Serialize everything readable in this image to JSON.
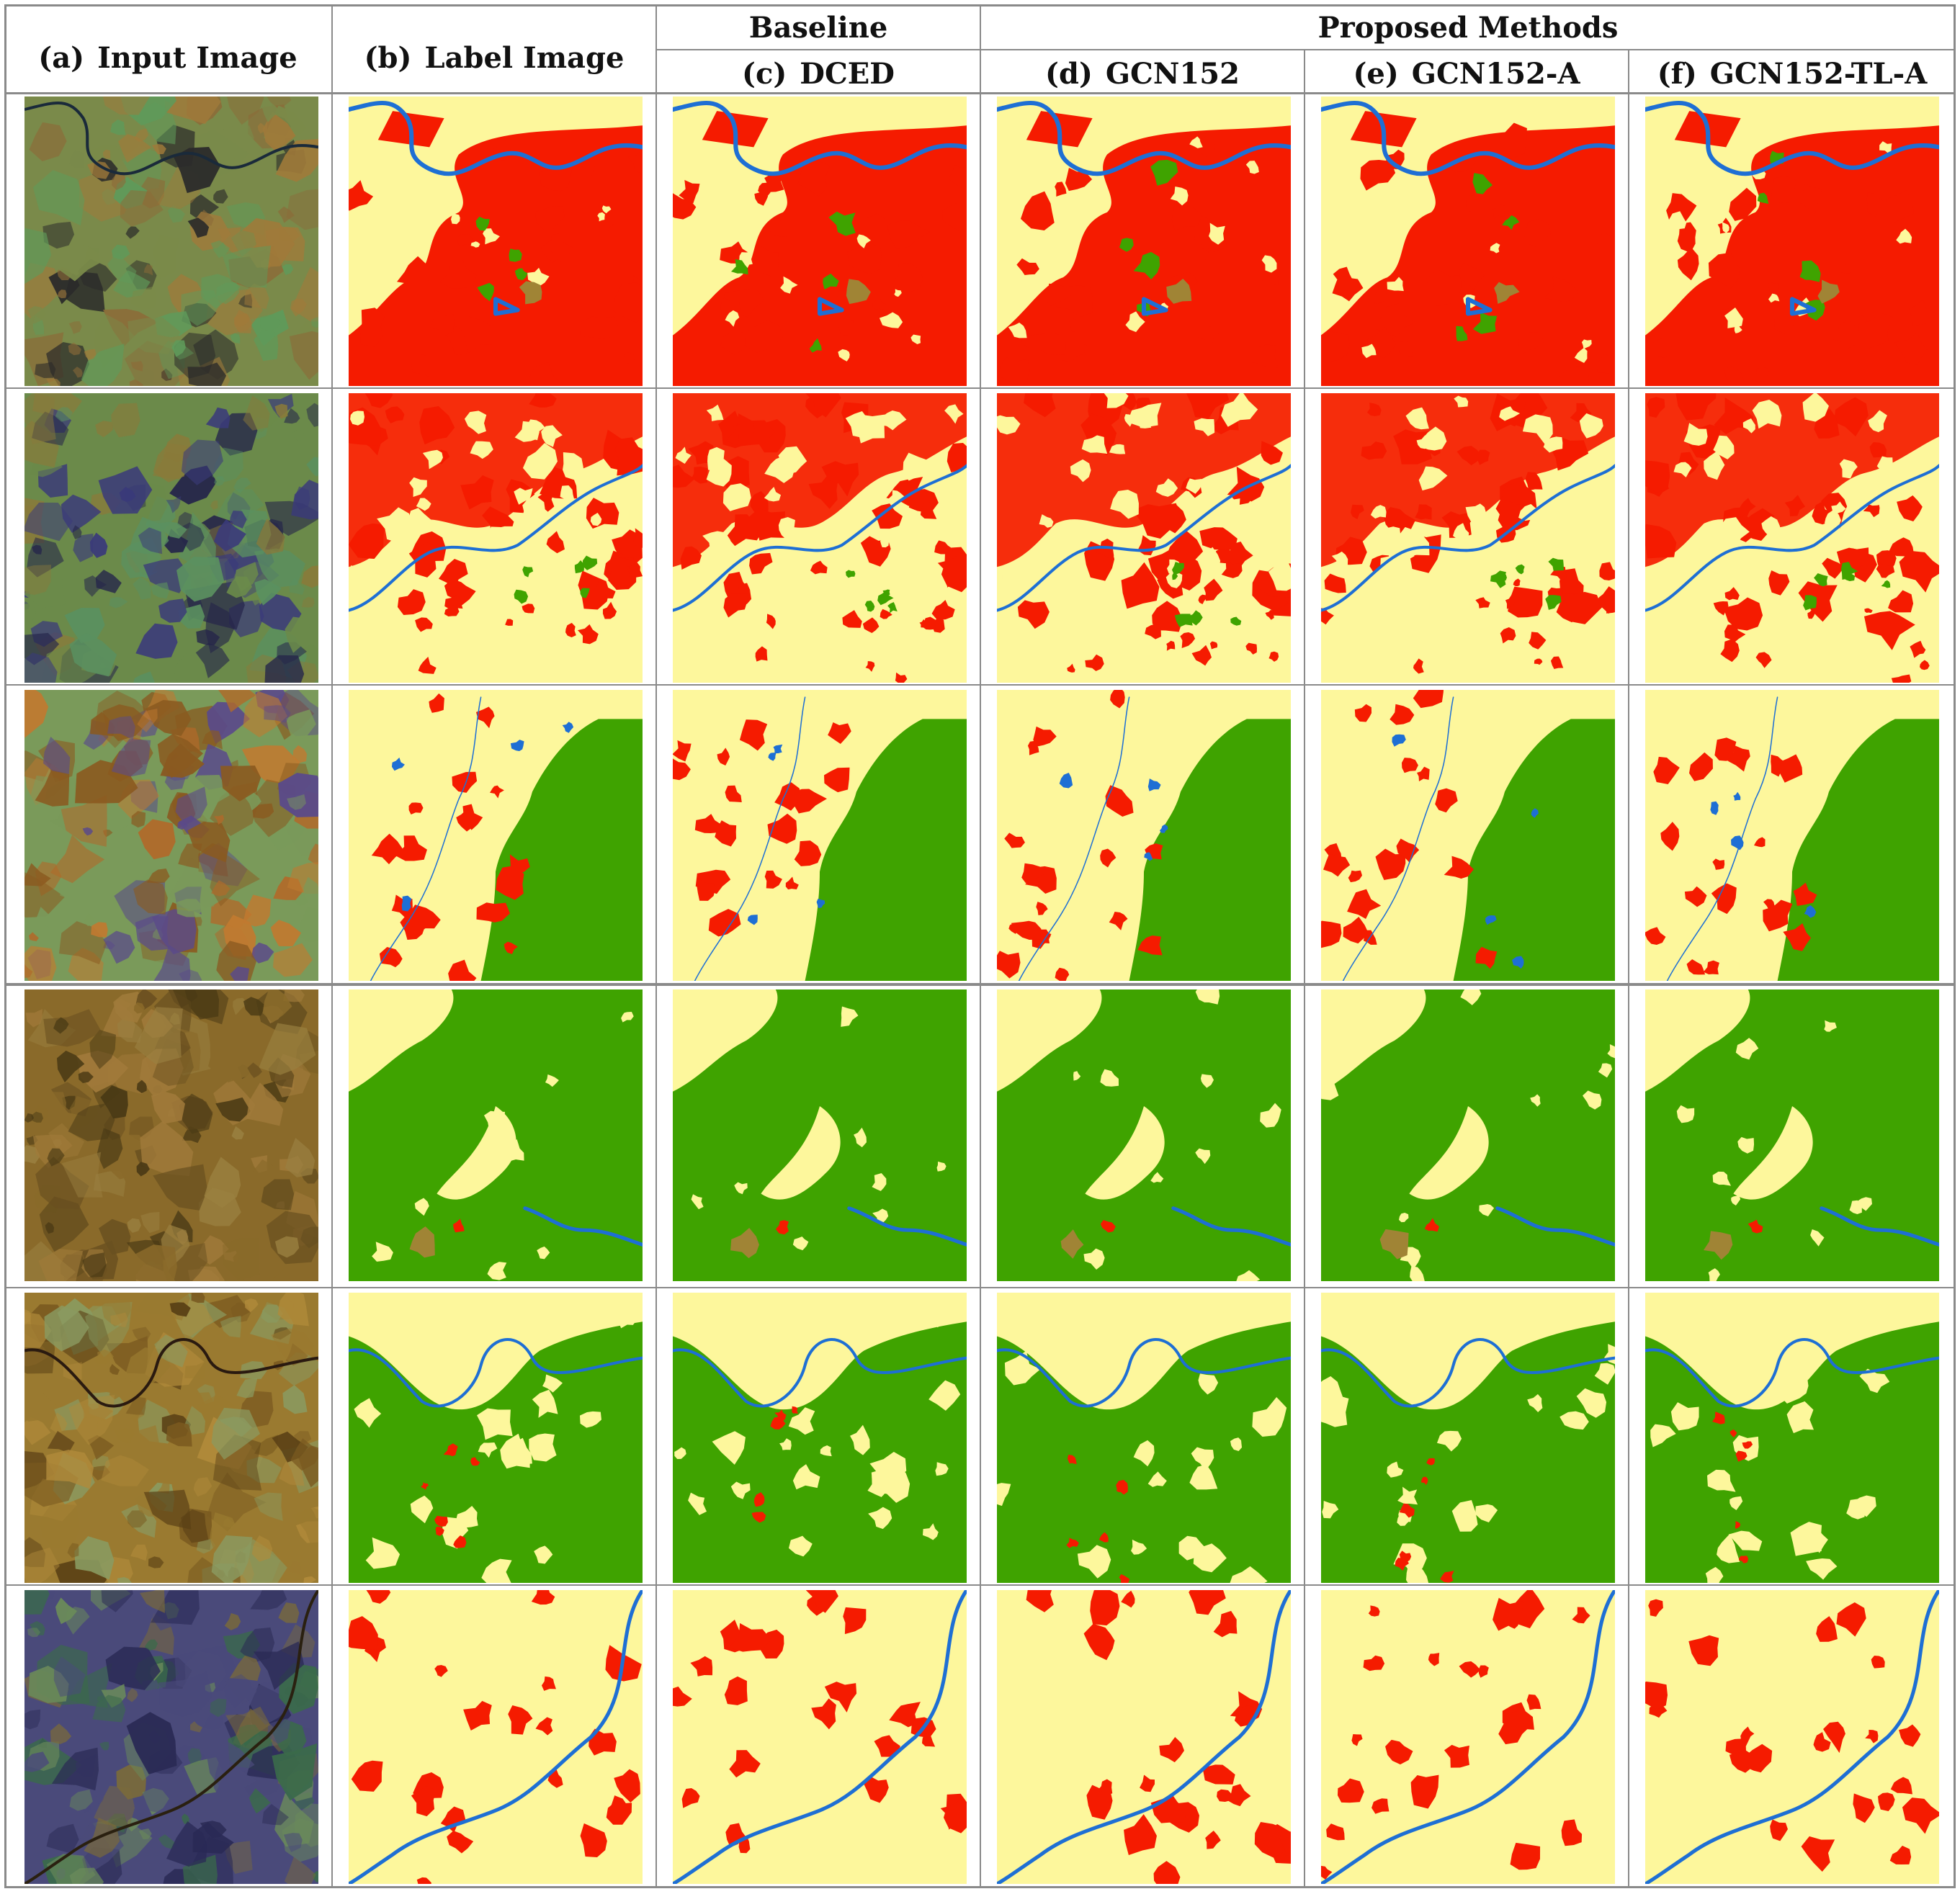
{
  "headers": {
    "group_baseline": "Baseline",
    "group_proposed": "Proposed Methods",
    "columns": [
      {
        "tag": "(a)",
        "label": "Input Image"
      },
      {
        "tag": "(b)",
        "label": "Label Image"
      },
      {
        "tag": "(c)",
        "label": "DCED"
      },
      {
        "tag": "(d)",
        "label": "GCN152"
      },
      {
        "tag": "(e)",
        "label": "GCN152-A"
      },
      {
        "tag": "(f)",
        "label": "GCN152-TL-A"
      }
    ]
  },
  "class_colors": {
    "agriculture": "#fdf79c",
    "urban": "#f51b00",
    "forest": "#3fa300",
    "water": "#1e6fd4",
    "miscellaneous": "#a08435"
  },
  "rows": [
    {
      "scene": "urban-river",
      "input_palette": [
        "#7a8a4a",
        "#a07a3a",
        "#5f9a5a",
        "#8c6b38",
        "#2a2a2a"
      ]
    },
    {
      "scene": "urban-agri",
      "input_palette": [
        "#6b8a4a",
        "#3a3a7a",
        "#8a7a3a",
        "#5a9060",
        "#25254a"
      ]
    },
    {
      "scene": "forest-east",
      "input_palette": [
        "#7a9a5a",
        "#b06a2a",
        "#c07a30",
        "#5a4a8a",
        "#8a5a20"
      ]
    },
    {
      "scene": "forest-dense",
      "input_palette": [
        "#8a6a2a",
        "#a07a3a",
        "#6a5020",
        "#9a8040",
        "#4a3a15"
      ]
    },
    {
      "scene": "forest-river",
      "input_palette": [
        "#9a7a30",
        "#b08a3a",
        "#7a5a20",
        "#8a9a60",
        "#5a4015"
      ]
    },
    {
      "scene": "agri-river",
      "input_palette": [
        "#4a4a7a",
        "#3a6a4a",
        "#7a6a3a",
        "#2a2a55",
        "#6a8a5a"
      ]
    }
  ]
}
